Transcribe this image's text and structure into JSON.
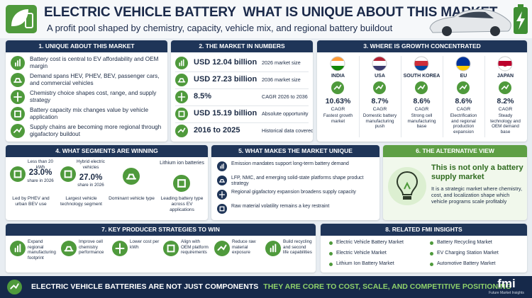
{
  "header": {
    "title": "ELECTRIC VEHICLE BATTERY  WHAT IS UNIQUE ABOUT THIS MARKET",
    "subtitle": "A profit pool shaped by chemistry, capacity, vehicle mix, and regional battery buildout"
  },
  "unique": {
    "title": "1. UNIQUE ABOUT THIS MARKET",
    "items": [
      "Battery cost is central to EV affordability and OEM margin",
      "Demand spans HEV, PHEV, BEV, passenger cars, and commercial vehicles",
      "Chemistry choice shapes cost, range, and supply strategy",
      "Battery capacity mix changes value by vehicle application",
      "Supply chains are becoming more regional through gigafactory buildout"
    ]
  },
  "numbers": {
    "title": "2. THE MARKET IN NUMBERS",
    "rows": [
      {
        "value": "USD 12.04 billion",
        "label": "2026 market size"
      },
      {
        "value": "USD 27.23 billion",
        "label": "2036 market size"
      },
      {
        "value": "8.5%",
        "label": "CAGR 2026 to 2036"
      },
      {
        "value": "USD 15.19 billion",
        "label": "Absolute opportunity"
      },
      {
        "value": "2016 to 2025",
        "label": "Historical data covered"
      }
    ]
  },
  "growth": {
    "title": "3. WHERE IS GROWTH CONCENTRATED",
    "regions": [
      {
        "name": "INDIA",
        "cagr": "10.63%",
        "unit": "CAGR",
        "note": "Fastest growth market"
      },
      {
        "name": "USA",
        "cagr": "8.7%",
        "unit": "CAGR",
        "note": "Domestic battery manufacturing push"
      },
      {
        "name": "SOUTH KOREA",
        "cagr": "8.6%",
        "unit": "CAGR",
        "note": "Strong cell manufacturing base"
      },
      {
        "name": "EU",
        "cagr": "8.6%",
        "unit": "CAGR",
        "note": "Electrification and regional production expansion"
      },
      {
        "name": "JAPAN",
        "cagr": "8.2%",
        "unit": "CAGR",
        "note": "Steady technology and OEM demand base"
      }
    ]
  },
  "segments": {
    "title": "4. WHAT SEGMENTS ARE WINNING",
    "items": [
      {
        "label": "Less than 20 kWh",
        "value": "23.0%",
        "sub": "share in 2026",
        "note": "Led by PHEV and urban BEV use"
      },
      {
        "label": "Hybrid electric vehicles",
        "value": "27.0%",
        "sub": "share in 2026",
        "note": "Largest vehicle technology segment"
      },
      {
        "note": "Dominant vehicle type"
      },
      {
        "label": "Lithium ion batteries",
        "note": "Leading battery type across EV applications"
      }
    ]
  },
  "factors": {
    "title": "5. WHAT MAKES THE MARKET UNIQUE",
    "items": [
      "Emission mandates support long-term battery demand",
      "LFP, NMC, and emerging solid-state platforms shape product strategy",
      "Regional gigafactory expansion broadens supply capacity",
      "Raw material volatility remains a key restraint"
    ]
  },
  "alternative": {
    "title": "6. THE ALTERNATIVE VIEW",
    "headline": "This is not only a battery supply market",
    "text": "It is a strategic market where chemistry, cost, and localization shape which vehicle programs scale profitably"
  },
  "strategies": {
    "title": "7. KEY PRODUCER STRATEGIES TO WIN",
    "items": [
      "Expand regional manufacturing footprint",
      "Improve cell chemistry performance",
      "Lower cost per kWh",
      "Align with OEM platform requirements",
      "Reduce raw material exposure",
      "Build recycling and second life capabilities"
    ]
  },
  "insights": {
    "title": "8. RELATED FMI INSIGHTS",
    "links": [
      "Electric Vehicle Battery Market",
      "Battery Recycling Market",
      "Electric Vehicle Market",
      "EV Charging Station Market",
      "Lithium Ion Battery Market",
      "Automotive Battery Market"
    ]
  },
  "footer": {
    "lead": "ELECTRIC VEHICLE BATTERIES ARE NOT JUST COMPONENTS",
    "tagline": "THEY ARE CORE TO COST, SCALE, AND COMPETITIVE POSITIONING",
    "brand": "fmi",
    "brand_sub": "Future Market Insights"
  }
}
